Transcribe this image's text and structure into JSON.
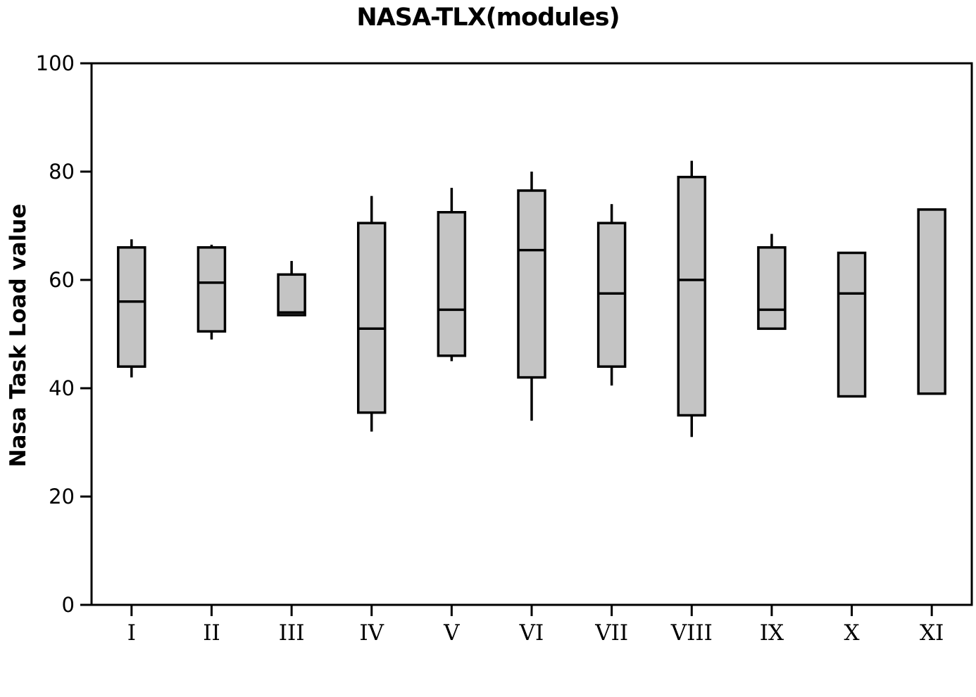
{
  "chart_data": {
    "type": "boxplot",
    "title": "NASA-TLX(modules)",
    "ylabel": "Nasa Task Load value",
    "xlabel": "",
    "ylim": [
      0,
      100
    ],
    "y_ticks": [
      0,
      20,
      40,
      60,
      80,
      100
    ],
    "grid": false,
    "frame": true,
    "legend_position": "none",
    "categories": [
      "I",
      "II",
      "III",
      "IV",
      "V",
      "VI",
      "VII",
      "VIII",
      "IX",
      "X",
      "XI"
    ],
    "boxes": [
      {
        "category": "I",
        "whisker_low": 42,
        "q1": 44,
        "median": 56,
        "q3": 66,
        "whisker_high": 67.5
      },
      {
        "category": "II",
        "whisker_low": 49,
        "q1": 50.5,
        "median": 59.5,
        "q3": 66,
        "whisker_high": 66.5
      },
      {
        "category": "III",
        "whisker_low": null,
        "q1": 53.5,
        "median": 54,
        "q3": 61,
        "whisker_high": 63.5
      },
      {
        "category": "IV",
        "whisker_low": 32,
        "q1": 35.5,
        "median": 51,
        "q3": 70.5,
        "whisker_high": 75.5
      },
      {
        "category": "V",
        "whisker_low": 45,
        "q1": 46,
        "median": 54.5,
        "q3": 72.5,
        "whisker_high": 77
      },
      {
        "category": "VI",
        "whisker_low": 34,
        "q1": 42,
        "median": 65.5,
        "q3": 76.5,
        "whisker_high": 80
      },
      {
        "category": "VII",
        "whisker_low": 40.5,
        "q1": 44,
        "median": 57.5,
        "q3": 70.5,
        "whisker_high": 74
      },
      {
        "category": "VIII",
        "whisker_low": 31,
        "q1": 35,
        "median": 60,
        "q3": 79,
        "whisker_high": 82
      },
      {
        "category": "IX",
        "whisker_low": null,
        "q1": 51,
        "median": 54.5,
        "q3": 66,
        "whisker_high": 68.5
      },
      {
        "category": "X",
        "whisker_low": null,
        "q1": 38.5,
        "median": 57.5,
        "q3": 65,
        "whisker_high": null
      },
      {
        "category": "XI",
        "whisker_low": null,
        "q1": 39,
        "median": null,
        "q3": 73,
        "whisker_high": null
      }
    ],
    "colors": {
      "box_fill": "#c4c4c4",
      "box_stroke": "#000000",
      "axis": "#000000",
      "background": "#ffffff"
    }
  }
}
